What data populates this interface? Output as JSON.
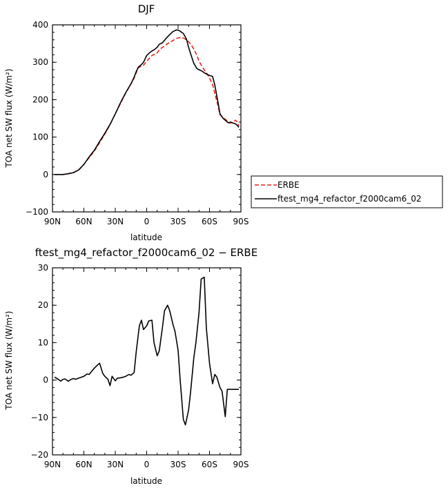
{
  "chart_data": [
    {
      "type": "line",
      "title": "DJF",
      "xlabel": "latitude",
      "ylabel": "TOA net SW flux (W/m²)",
      "xlim": [
        90,
        -90
      ],
      "ylim": [
        -100,
        400
      ],
      "xticks": [
        90,
        60,
        30,
        0,
        -30,
        -60,
        -90
      ],
      "xtick_labels": [
        "90N",
        "60N",
        "30N",
        "0",
        "30S",
        "60S",
        "90S"
      ],
      "yticks": [
        -100,
        0,
        100,
        200,
        300,
        400
      ],
      "ytick_labels": [
        "−100",
        "0",
        "100",
        "200",
        "300",
        "400"
      ],
      "grid": false,
      "legend": "right",
      "series": [
        {
          "name": "ERBE",
          "color": "#e8201a",
          "dash": "dashed",
          "x": [
            88,
            80,
            75,
            70,
            65,
            60,
            55,
            50,
            45,
            40,
            35,
            30,
            25,
            20,
            15,
            12,
            10,
            8,
            5,
            3,
            0,
            -3,
            -5,
            -8,
            -10,
            -12,
            -15,
            -18,
            -20,
            -22,
            -25,
            -28,
            -30,
            -32,
            -35,
            -38,
            -40,
            -43,
            -45,
            -48,
            -50,
            -53,
            -55,
            -58,
            -60,
            -63,
            -65,
            -68,
            -70,
            -73,
            -75,
            -78,
            -80,
            -82,
            -85,
            -87,
            -88
          ],
          "y": [
            0,
            0,
            2,
            5,
            12,
            27,
            45,
            63,
            85,
            108,
            133,
            162,
            190,
            218,
            242,
            258,
            272,
            285,
            290,
            292,
            303,
            312,
            318,
            322,
            325,
            333,
            340,
            345,
            350,
            353,
            358,
            363,
            365,
            366,
            365,
            360,
            355,
            345,
            335,
            318,
            303,
            288,
            280,
            268,
            258,
            240,
            218,
            185,
            160,
            152,
            148,
            140,
            137,
            140,
            145,
            138,
            130
          ]
        },
        {
          "name": "ftest_mg4_refactor_f2000cam6_02",
          "color": "#000000",
          "dash": "solid",
          "x": [
            88,
            80,
            75,
            70,
            65,
            60,
            55,
            50,
            45,
            40,
            35,
            30,
            25,
            20,
            15,
            12,
            10,
            8,
            5,
            3,
            0,
            -3,
            -5,
            -8,
            -10,
            -12,
            -15,
            -18,
            -20,
            -22,
            -25,
            -28,
            -30,
            -32,
            -35,
            -38,
            -40,
            -43,
            -45,
            -48,
            -50,
            -53,
            -55,
            -58,
            -60,
            -63,
            -65,
            -68,
            -70,
            -73,
            -75,
            -78,
            -80,
            -82,
            -85,
            -87,
            -88
          ],
          "y": [
            0,
            0,
            2,
            5,
            12,
            27,
            47,
            65,
            88,
            110,
            134,
            162,
            192,
            219,
            243,
            260,
            275,
            287,
            294,
            300,
            318,
            326,
            330,
            335,
            340,
            348,
            352,
            362,
            368,
            374,
            382,
            386,
            386,
            383,
            377,
            362,
            340,
            314,
            297,
            283,
            280,
            276,
            272,
            267,
            265,
            262,
            240,
            195,
            162,
            150,
            145,
            138,
            140,
            138,
            135,
            130,
            126
          ]
        }
      ]
    },
    {
      "type": "line",
      "title": "ftest_mg4_refactor_f2000cam6_02 − ERBE",
      "xlabel": "latitude",
      "ylabel": "TOA net SW flux (W/m²)",
      "xlim": [
        90,
        -90
      ],
      "ylim": [
        -20,
        30
      ],
      "xticks": [
        90,
        60,
        30,
        0,
        -30,
        -60,
        -90
      ],
      "xtick_labels": [
        "90N",
        "60N",
        "30N",
        "0",
        "30S",
        "60S",
        "90S"
      ],
      "yticks": [
        -20,
        -10,
        0,
        10,
        20,
        30
      ],
      "ytick_labels": [
        "−20",
        "−10",
        "0",
        "10",
        "20",
        "30"
      ],
      "grid": false,
      "series": [
        {
          "color": "#000000",
          "x": [
            88,
            85,
            82,
            80,
            78,
            75,
            72,
            70,
            68,
            65,
            62,
            60,
            57,
            55,
            52,
            50,
            47,
            45,
            42,
            40,
            37,
            35,
            33,
            30,
            28,
            25,
            22,
            20,
            17,
            15,
            12,
            10,
            7,
            5,
            3,
            0,
            -2,
            -5,
            -7,
            -10,
            -12,
            -15,
            -17,
            -20,
            -22,
            -25,
            -27,
            -30,
            -32,
            -35,
            -37,
            -40,
            -42,
            -45,
            -47,
            -50,
            -52,
            -55,
            -57,
            -60,
            -63,
            -65,
            -67,
            -70,
            -72,
            -75,
            -77,
            -80,
            -82,
            -85,
            -87,
            -88
          ],
          "y": [
            0.8,
            0.3,
            -0.3,
            0.2,
            0.3,
            -0.3,
            0.2,
            0.4,
            0.2,
            0.5,
            0.8,
            1.0,
            1.6,
            1.5,
            2.5,
            3.2,
            4.0,
            4.5,
            1.8,
            1.0,
            0.2,
            -1.5,
            1.0,
            -0.2,
            0.5,
            0.6,
            0.8,
            1.0,
            1.5,
            1.3,
            2.0,
            7.5,
            14.5,
            16.0,
            13.5,
            14.5,
            15.8,
            16.0,
            10.0,
            6.5,
            7.8,
            14.0,
            18.5,
            20.0,
            18.5,
            15.0,
            13.0,
            8.0,
            0.0,
            -10.5,
            -12.0,
            -8.0,
            -3.0,
            6.0,
            10.0,
            18.0,
            27.0,
            27.5,
            14.0,
            4.5,
            -1.0,
            1.5,
            0.8,
            -2.0,
            -3.0,
            -9.8,
            -2.5,
            -2.5,
            -2.5,
            -2.5,
            -2.5,
            -2.5
          ]
        }
      ]
    }
  ]
}
